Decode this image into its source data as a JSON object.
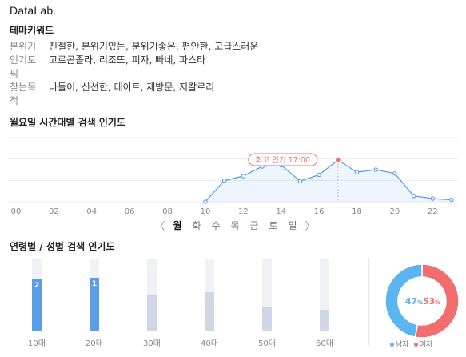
{
  "brand": {
    "name": "DataLab",
    "dot": "."
  },
  "theme_keywords": {
    "title": "테마키워드",
    "rows": [
      {
        "label": "분위기",
        "value": "친절한, 분위기있는, 분위기좋은, 편안한, 고급스러운"
      },
      {
        "label_line1": "인기토",
        "label_line2": "픽",
        "value": "고르곤졸라, 리조또, 피자, 빠네, 파스타"
      },
      {
        "label_line1": "찾는목",
        "label_line2": "적",
        "value": "나들이, 신선한, 데이트, 재방문, 저칼로리"
      }
    ]
  },
  "hourly": {
    "title": "월요일 시간대별 검색 인기도",
    "tooltip": "최고 인기 17:00",
    "accent": "#5b9ee8",
    "peak_color": "#f07070",
    "chart_data": {
      "type": "line",
      "x_tick_labels": [
        "00",
        "02",
        "04",
        "06",
        "08",
        "10",
        "12",
        "14",
        "16",
        "18",
        "20",
        "22"
      ],
      "x": [
        10,
        11,
        12,
        13,
        14,
        15,
        16,
        17,
        18,
        19,
        20,
        21,
        22,
        23
      ],
      "values": [
        0,
        33,
        40,
        55,
        57,
        32,
        42,
        65,
        46,
        50,
        44,
        9,
        5,
        3
      ],
      "xlim": [
        0,
        23
      ],
      "ylim": [
        0,
        100
      ],
      "peak_x": 17,
      "grid": true
    }
  },
  "days": {
    "prev": "〈",
    "next": "〉",
    "items": [
      "월",
      "화",
      "수",
      "목",
      "금",
      "토",
      "일"
    ],
    "active_index": 0
  },
  "age_gender": {
    "title": "연령별 / 성별 검색 인기도",
    "age_colors": {
      "highlight": "#5b9ee8",
      "normal": "#cfd6e4"
    },
    "ages": [
      {
        "label": "10대",
        "value": 72,
        "rank": "2"
      },
      {
        "label": "20대",
        "value": 75,
        "rank": "1"
      },
      {
        "label": "30대",
        "value": 51,
        "rank": ""
      },
      {
        "label": "40대",
        "value": 55,
        "rank": ""
      },
      {
        "label": "50대",
        "value": 33,
        "rank": ""
      },
      {
        "label": "60대",
        "value": 30,
        "rank": ""
      }
    ],
    "gender": {
      "male_pct": "47",
      "female_pct": "53",
      "unit": "%",
      "male_label": "남자",
      "female_label": "여자",
      "male_color": "#5bb5f0",
      "female_color": "#f26d6d"
    }
  }
}
